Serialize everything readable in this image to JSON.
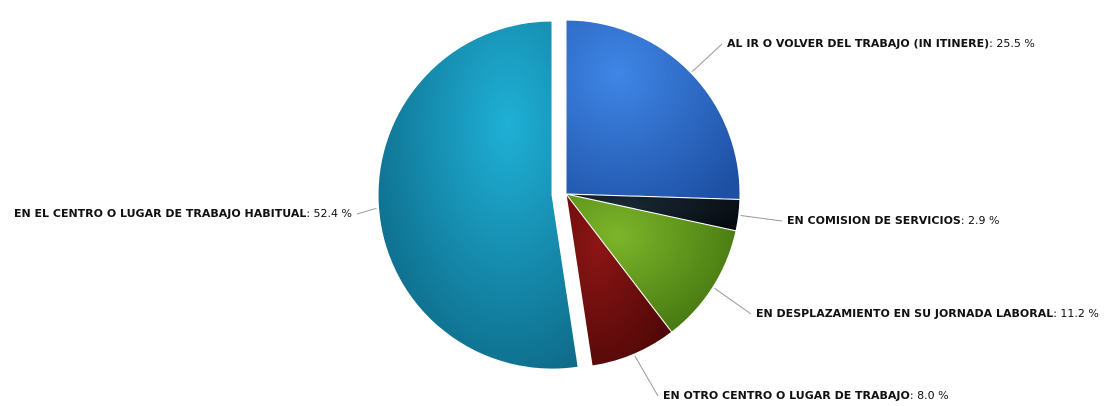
{
  "chart_data": {
    "type": "pie",
    "unit": "%",
    "slices": [
      {
        "label": "AL IR O VOLVER DEL TRABAJO (IN ITINERE)",
        "value": 25.5,
        "value_text": "25.5 %",
        "color": "#2f6fd0"
      },
      {
        "label": "EN COMISION DE SERVICIOS",
        "value": 2.9,
        "value_text": "2.9 %",
        "color": "#0a1620"
      },
      {
        "label": "EN DESPLAZAMIENTO EN SU JORNADA LABORAL",
        "value": 11.2,
        "value_text": "11.2 %",
        "color": "#5e9a1a"
      },
      {
        "label": "EN OTRO CENTRO O LUGAR DE TRABAJO",
        "value": 8.0,
        "value_text": "8.0 %",
        "color": "#6b0d0d"
      },
      {
        "label": "EN EL CENTRO O LUGAR DE TRABAJO HABITUAL",
        "value": 52.4,
        "value_text": "52.4 %",
        "color": "#1a8db4"
      }
    ]
  }
}
